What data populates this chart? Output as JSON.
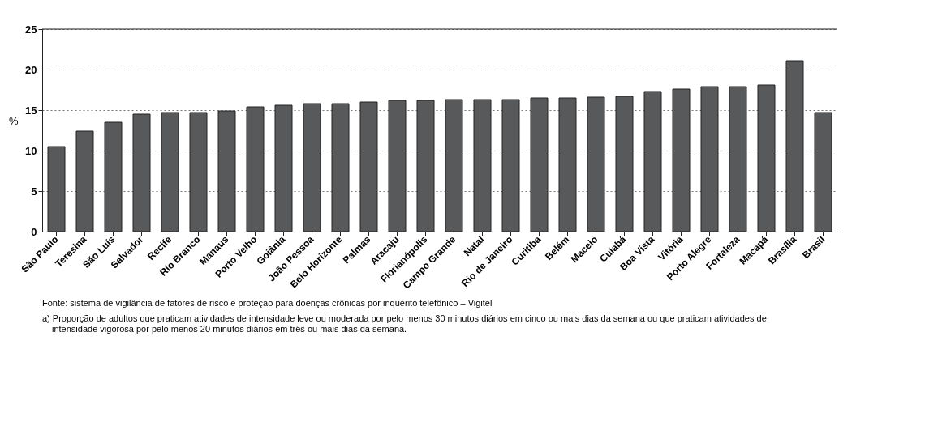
{
  "chart_data": {
    "type": "bar",
    "ylabel": "%",
    "categories": [
      "São Paulo",
      "Teresina",
      "São Luís",
      "Salvador",
      "Recife",
      "Rio Branco",
      "Manaus",
      "Porto Velho",
      "Goiânia",
      "João Pessoa",
      "Belo Horizonte",
      "Palmas",
      "Aracaju",
      "Florianópolis",
      "Campo Grande",
      "Natal",
      "Rio de Janeiro",
      "Curitiba",
      "Belém",
      "Maceió",
      "Cuiabá",
      "Boa Vista",
      "Vitória",
      "Porto Alegre",
      "Fortaleza",
      "Macapá",
      "Brasília",
      "Brasil"
    ],
    "values": [
      10.5,
      12.4,
      13.5,
      14.5,
      14.7,
      14.7,
      14.9,
      15.4,
      15.6,
      15.8,
      15.8,
      16.0,
      16.2,
      16.2,
      16.3,
      16.3,
      16.3,
      16.5,
      16.5,
      16.6,
      16.7,
      17.3,
      17.6,
      17.9,
      17.9,
      18.1,
      21.1,
      14.7
    ],
    "color": "#58595b",
    "ylim": [
      0,
      25
    ],
    "yticks": [
      0,
      5,
      10,
      15,
      20,
      25
    ],
    "grid": "y",
    "annotations": [
      "Fonte: sistema de vigilância de fatores de risco e proteção para doenças crônicas por inquérito telefônico – Vigitel",
      "a) Proporção de adultos que praticam atividades de intensidade leve ou moderada por pelo menos 30 minutos diários em cinco ou mais dias da semana ou que praticam atividades de intensidade vigorosa por pelo menos 20 minutos diários em três ou mais dias da semana."
    ]
  }
}
